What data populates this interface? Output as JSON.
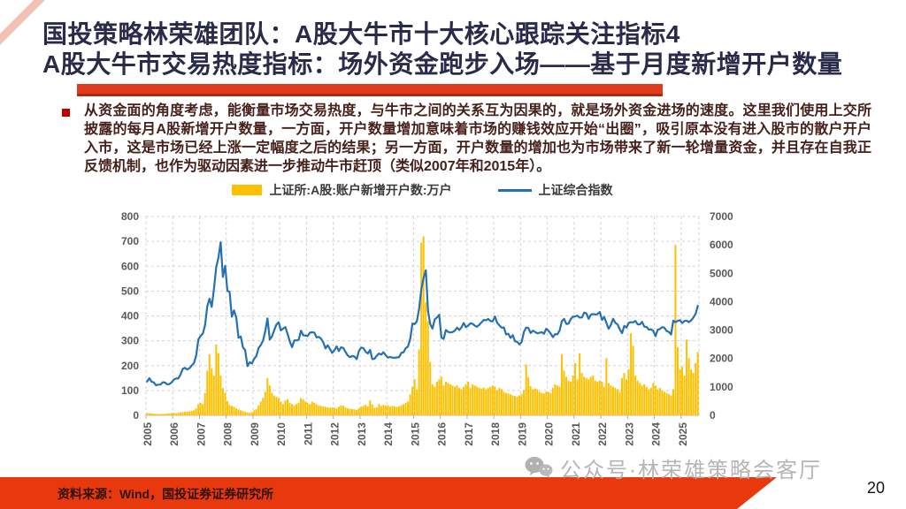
{
  "header": {
    "title_line1": "国投策略林荣雄团队：A股大牛市十大核心跟踪关注指标4",
    "title_line2": "A股大牛市交易热度指标：场外资金跑步入场——基于月度新增开户数量"
  },
  "body": {
    "bullet_text": "从资金面的角度考虑，能衡量市场交易热度，与牛市之间的关系互为因果的，就是场外资金进场的速度。这里我们使用上交所披露的每月A股新增开户数量，一方面，开户数量增加意味着市场的赚钱效应开始“出圈”，吸引原本没有进入股市的散户开户入市，这是市场已经上涨一定幅度之后的结果；另一方面，开户数量的增加也为市场带来了新一轮增量资金，并且存在自我正反馈机制，也作为驱动因素进一步推动牛市赶顶（类似2007年和2015年）。"
  },
  "footer": {
    "source_text": "资料来源：Wind，国投证券证券研究所",
    "watermark_text": "公众号·林荣雄策略会客厅",
    "page_number": "20"
  },
  "colors": {
    "accent_red": "#E8380D",
    "underline_red": "#E23A1F",
    "underline_shadow": "#AE2712",
    "title_ink": "#2A2A4A",
    "body_text": "#46201B",
    "bullet_red": "#C00000",
    "axis_text": "#595959",
    "legend_text": "#3A3A3A",
    "watermark_gray": "#AFAFAF",
    "footer_text": "#2E130B"
  },
  "chart_data": {
    "type": "combo",
    "grid": true,
    "legend_position": "top",
    "x_frequency": "monthly",
    "x_start": "2005-01",
    "x_end": "2025-08",
    "x_tick_labels": [
      "2005",
      "2006",
      "2007",
      "2008",
      "2009",
      "2010",
      "2011",
      "2012",
      "2013",
      "2014",
      "2015",
      "2016",
      "2017",
      "2018",
      "2019",
      "2020",
      "2021",
      "2022",
      "2023",
      "2024",
      "2025"
    ],
    "left_axis": {
      "min": 0,
      "max": 800,
      "step": 100
    },
    "right_axis": {
      "min": 0,
      "max": 7000,
      "step": 1000
    },
    "series": [
      {
        "name": "上证所:A股:账户新增开户数:万户",
        "type": "bar",
        "axis": "left",
        "color": "#FFC000",
        "values": [
          9,
          8,
          8,
          7,
          6,
          5,
          5,
          6,
          6,
          7,
          8,
          9,
          9,
          8,
          10,
          12,
          13,
          15,
          14,
          16,
          18,
          20,
          28,
          45,
          50,
          45,
          90,
          180,
          245,
          190,
          160,
          285,
          250,
          160,
          110,
          90,
          58,
          42,
          38,
          34,
          28,
          24,
          20,
          17,
          14,
          11,
          10,
          12,
          20,
          25,
          40,
          55,
          70,
          95,
          150,
          120,
          90,
          80,
          75,
          70,
          55,
          45,
          60,
          65,
          50,
          45,
          40,
          45,
          50,
          70,
          65,
          55,
          50,
          45,
          55,
          50,
          45,
          40,
          38,
          36,
          34,
          32,
          30,
          32,
          30,
          28,
          35,
          40,
          38,
          32,
          28,
          26,
          25,
          24,
          22,
          28,
          35,
          38,
          42,
          36,
          60,
          45,
          30,
          32,
          45,
          38,
          42,
          40,
          40,
          35,
          38,
          36,
          34,
          36,
          40,
          45,
          50,
          55,
          85,
          115,
          145,
          105,
          265,
          695,
          720,
          455,
          380,
          215,
          125,
          115,
          135,
          145,
          155,
          120,
          135,
          130,
          125,
          120,
          115,
          120,
          110,
          105,
          115,
          125,
          135,
          110,
          125,
          120,
          115,
          110,
          108,
          112,
          105,
          110,
          115,
          120,
          115,
          100,
          110,
          105,
          95,
          90,
          88,
          85,
          80,
          78,
          75,
          80,
          85,
          102,
          205,
          153,
          118,
          105,
          108,
          105,
          95,
          90,
          88,
          95,
          95,
          90,
          110,
          125,
          120,
          115,
          245,
          180,
          155,
          140,
          135,
          160,
          210,
          145,
          250,
          170,
          155,
          150,
          145,
          155,
          160,
          140,
          135,
          140,
          135,
          115,
          230,
          130,
          120,
          115,
          110,
          105,
          95,
          150,
          170,
          145,
          185,
          330,
          280,
          160,
          140,
          130,
          120,
          125,
          115,
          105,
          110,
          130,
          120,
          105,
          110,
          100,
          95,
          90,
          85,
          80,
          105,
          685,
          275,
          185,
          195,
          160,
          305,
          230,
          185,
          170,
          210,
          255
        ]
      },
      {
        "name": "上证综合指数",
        "type": "line",
        "axis": "right",
        "color": "#2470B3",
        "values": [
          1192,
          1306,
          1181,
          1159,
          1060,
          1081,
          1083,
          1163,
          1155,
          1092,
          1099,
          1161,
          1258,
          1299,
          1298,
          1441,
          1641,
          1672,
          1613,
          1658,
          1752,
          1838,
          2099,
          2675,
          2786,
          2881,
          3184,
          3841,
          4109,
          3821,
          4471,
          5218,
          5552,
          6092,
          4871,
          5262,
          4383,
          4348,
          3473,
          3693,
          3433,
          2736,
          2776,
          2397,
          2294,
          1729,
          1871,
          1821,
          1991,
          2083,
          2373,
          2477,
          2632,
          2959,
          3412,
          2668,
          2779,
          2995,
          3195,
          3277,
          2989,
          3052,
          3109,
          2871,
          2592,
          2398,
          2638,
          2639,
          2656,
          2979,
          2820,
          2808,
          2790,
          2905,
          2928,
          2911,
          2743,
          2762,
          2702,
          2567,
          2359,
          2468,
          2333,
          2199,
          2293,
          2428,
          2262,
          2396,
          2372,
          2225,
          2103,
          2047,
          2086,
          2068,
          1980,
          2269,
          2385,
          2365,
          2237,
          2177,
          2301,
          1979,
          1994,
          2098,
          2175,
          2141,
          2221,
          2116,
          2033,
          2056,
          2033,
          2026,
          2039,
          2048,
          2201,
          2217,
          2364,
          2420,
          2683,
          3235,
          3210,
          3310,
          3748,
          4442,
          4846,
          5106,
          3664,
          3206,
          3053,
          3383,
          3445,
          3539,
          2738,
          2688,
          3004,
          2938,
          2917,
          2930,
          2979,
          3085,
          3005,
          3100,
          3250,
          3104,
          3159,
          3242,
          3223,
          3155,
          3117,
          3192,
          3273,
          3361,
          3349,
          3393,
          3317,
          3307,
          3481,
          3259,
          3169,
          3082,
          3095,
          2847,
          2876,
          2725,
          2821,
          2603,
          2588,
          2494,
          2585,
          2941,
          3090,
          3078,
          2898,
          2979,
          2933,
          2886,
          2905,
          2929,
          2872,
          3050,
          2977,
          2880,
          2750,
          2860,
          2852,
          2985,
          3310,
          3396,
          3218,
          3225,
          3392,
          3473,
          3483,
          3509,
          3442,
          3447,
          3615,
          3591,
          3397,
          3544,
          3568,
          3547,
          3564,
          3640,
          3361,
          3462,
          3252,
          3047,
          3186,
          3399,
          3253,
          3202,
          3024,
          2893,
          3151,
          3089,
          3256,
          3280,
          3273,
          3323,
          3205,
          3202,
          3291,
          3120,
          3110,
          3019,
          3030,
          2975,
          2789,
          3015,
          3041,
          3105,
          3087,
          2967,
          2938,
          2842,
          3336,
          3280,
          3326,
          3352,
          3251,
          3321,
          3336,
          3279,
          3347,
          3444,
          3573,
          3858
        ]
      }
    ]
  }
}
